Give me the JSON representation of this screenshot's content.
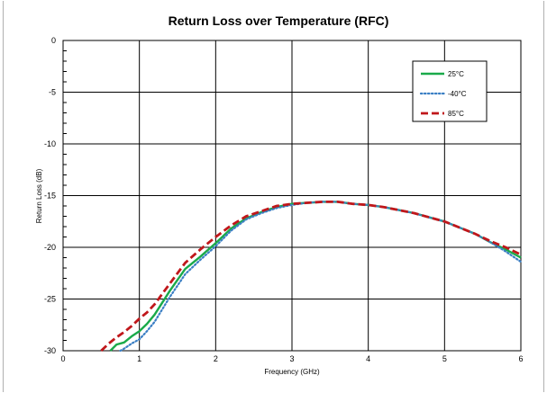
{
  "chart_data": {
    "type": "line",
    "title": "Return Loss over Temperature (RFC)",
    "xlabel": "Frequency (GHz)",
    "ylabel": "Return Loss (dB)",
    "xlim": [
      0,
      6
    ],
    "ylim": [
      -30,
      0
    ],
    "x_ticks": [
      "0",
      "1",
      "2",
      "3",
      "4",
      "5",
      "6"
    ],
    "y_ticks": [
      "0",
      "-5",
      "-10",
      "-15",
      "-20",
      "-25",
      "-30"
    ],
    "grid": true,
    "legend_position": "top-right",
    "series": [
      {
        "name": "25°C",
        "color": "#1aaa4a",
        "style": "solid",
        "x": [
          0.62,
          0.7,
          0.8,
          0.9,
          1.0,
          1.1,
          1.2,
          1.4,
          1.6,
          1.8,
          2.0,
          2.2,
          2.4,
          2.6,
          2.8,
          3.0,
          3.2,
          3.4,
          3.6,
          3.8,
          4.0,
          4.2,
          4.4,
          4.6,
          4.8,
          5.0,
          5.2,
          5.4,
          5.6,
          5.8,
          6.0
        ],
        "y": [
          -30.0,
          -29.4,
          -29.2,
          -28.6,
          -28.1,
          -27.4,
          -26.5,
          -24.2,
          -22.1,
          -20.9,
          -19.6,
          -18.2,
          -17.2,
          -16.6,
          -16.1,
          -15.8,
          -15.7,
          -15.6,
          -15.6,
          -15.8,
          -15.9,
          -16.1,
          -16.4,
          -16.7,
          -17.1,
          -17.5,
          -18.1,
          -18.7,
          -19.5,
          -20.2,
          -21.0
        ]
      },
      {
        "name": "-40°C",
        "color": "#3b7fc4",
        "style": "dotted",
        "x": [
          0.75,
          0.8,
          0.9,
          1.0,
          1.1,
          1.2,
          1.4,
          1.6,
          1.8,
          2.0,
          2.2,
          2.4,
          2.6,
          2.8,
          3.0,
          3.2,
          3.4,
          3.6,
          3.8,
          4.0,
          4.2,
          4.4,
          4.6,
          4.8,
          5.0,
          5.2,
          5.4,
          5.6,
          5.8,
          6.0
        ],
        "y": [
          -30.0,
          -29.8,
          -29.3,
          -28.9,
          -28.1,
          -27.2,
          -24.8,
          -22.6,
          -21.2,
          -19.9,
          -18.4,
          -17.3,
          -16.7,
          -16.2,
          -15.9,
          -15.7,
          -15.6,
          -15.6,
          -15.8,
          -15.9,
          -16.1,
          -16.4,
          -16.7,
          -17.1,
          -17.5,
          -18.1,
          -18.7,
          -19.5,
          -20.4,
          -21.4
        ]
      },
      {
        "name": "85°C",
        "color": "#c0171b",
        "style": "dashed",
        "x": [
          0.5,
          0.6,
          0.7,
          0.8,
          0.9,
          1.0,
          1.1,
          1.2,
          1.4,
          1.6,
          1.8,
          2.0,
          2.2,
          2.4,
          2.6,
          2.8,
          3.0,
          3.2,
          3.4,
          3.6,
          3.8,
          4.0,
          4.2,
          4.4,
          4.6,
          4.8,
          5.0,
          5.2,
          5.4,
          5.6,
          5.8,
          6.0
        ],
        "y": [
          -30.0,
          -29.3,
          -28.7,
          -28.2,
          -27.6,
          -26.9,
          -26.3,
          -25.5,
          -23.5,
          -21.5,
          -20.2,
          -19.0,
          -17.9,
          -17.0,
          -16.5,
          -16.0,
          -15.8,
          -15.7,
          -15.6,
          -15.6,
          -15.8,
          -15.9,
          -16.1,
          -16.4,
          -16.7,
          -17.1,
          -17.5,
          -18.1,
          -18.7,
          -19.4,
          -20.0,
          -20.7
        ]
      }
    ]
  }
}
